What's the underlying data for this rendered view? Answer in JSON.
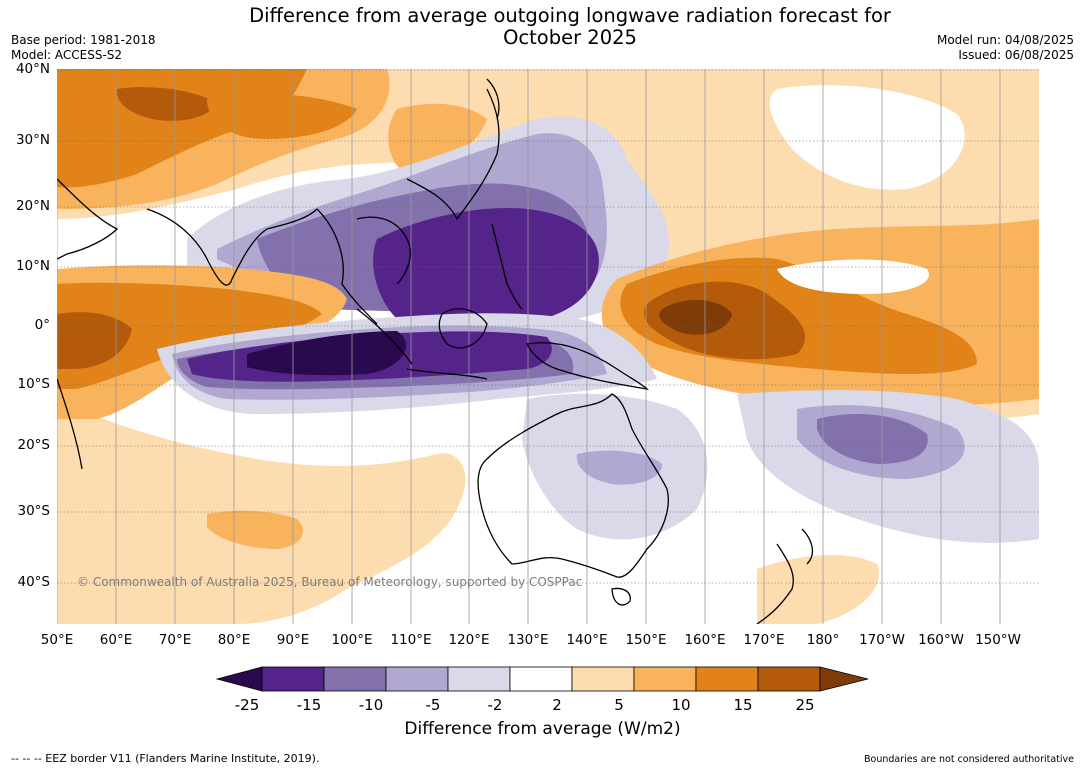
{
  "title_line1": "Difference from average outgoing longwave radiation forecast for",
  "title_line2": "October 2025",
  "base_period": "Base period: 1981-2018",
  "model": "Model: ACCESS-S2",
  "model_run": "Model run: 04/08/2025",
  "issued": "Issued: 06/08/2025",
  "lat_labels": [
    "40°N",
    "30°N",
    "20°N",
    "10°N",
    "0°",
    "10°S",
    "20°S",
    "30°S",
    "40°S"
  ],
  "lon_labels": [
    "50°E",
    "60°E",
    "70°E",
    "80°E",
    "90°E",
    "100°E",
    "110°E",
    "120°E",
    "130°E",
    "140°E",
    "150°E",
    "160°E",
    "170°E",
    "180°",
    "170°W",
    "160°W",
    "150°W"
  ],
  "copyright": "© Commonwealth of Australia 2025, Bureau of Meteorology, supported by COSPPac",
  "colorbar": {
    "ticks": [
      "-25",
      "-15",
      "-10",
      "-5",
      "-2",
      "2",
      "5",
      "10",
      "15",
      "25"
    ],
    "colors": [
      "#2a0a4f",
      "#55248a",
      "#8371ad",
      "#b0a8d1",
      "#d9d9ea",
      "#ffffff",
      "#fddcb0",
      "#f8b35c",
      "#e18318",
      "#b45a0b",
      "#7f3b08"
    ],
    "label": "Difference from average (W/m2)"
  },
  "eez_note": "--  --  -- EEZ border V11 (Flanders Marine Institute, 2019).",
  "boundaries_note": "Boundaries are not considered authoritative"
}
